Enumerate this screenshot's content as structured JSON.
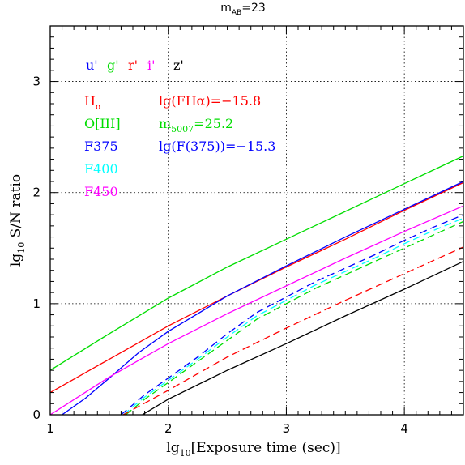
{
  "chart_data": {
    "type": "line",
    "title": "m",
    "title_sub": "AB",
    "title_suffix": "=23",
    "xlabel": "lg",
    "xlabel_sub": "10",
    "xlabel_suffix": "[Exposure time (sec)]",
    "ylabel": "lg",
    "ylabel_sub": "10",
    "ylabel_suffix": " S/N ratio",
    "xlim": [
      1,
      4.5
    ],
    "ylim": [
      0,
      3.5
    ],
    "xticks": [
      "1",
      "2",
      "3",
      "4"
    ],
    "yticks": [
      "0",
      "1",
      "2",
      "3"
    ],
    "grid": true,
    "filter_legend": [
      {
        "label": "u'",
        "color": "#0000ff"
      },
      {
        "label": "g'",
        "color": "#00dd00"
      },
      {
        "label": "r'",
        "color": "#ff0000"
      },
      {
        "label": "i'",
        "color": "#ff00ff"
      },
      {
        "label": "z'",
        "color": "#000000"
      }
    ],
    "band_legend": [
      {
        "label": "H",
        "sub": "α",
        "color": "#ff0000"
      },
      {
        "label": "O[III]",
        "color": "#00dd00"
      },
      {
        "label": "F375",
        "color": "#0000ff"
      },
      {
        "label": "F400",
        "color": "#00ffff"
      },
      {
        "label": "F450",
        "color": "#ff00ff"
      }
    ],
    "annotations": [
      {
        "text": "lg(FHα)=−15.8",
        "color": "#ff0000"
      },
      {
        "text": "m",
        "sub": "5007",
        "suffix": "=25.2",
        "color": "#00dd00"
      },
      {
        "text": "lg(F(375))=−15.3",
        "color": "#0000ff"
      }
    ],
    "series": [
      {
        "color": "#ff0000",
        "dash": false,
        "x": [
          1.0,
          1.5,
          2.0,
          2.5,
          3.0,
          3.5,
          4.0,
          4.5
        ],
        "y": [
          0.2,
          0.5,
          0.8,
          1.07,
          1.33,
          1.58,
          1.84,
          2.09
        ]
      },
      {
        "color": "#00dd00",
        "dash": false,
        "x": [
          1.0,
          1.5,
          2.0,
          2.5,
          3.0,
          3.5,
          4.0,
          4.5
        ],
        "y": [
          0.4,
          0.73,
          1.05,
          1.33,
          1.58,
          1.83,
          2.08,
          2.33
        ]
      },
      {
        "color": "#0000ff",
        "dash": false,
        "x": [
          1.1,
          1.3,
          1.5,
          1.75,
          2.0,
          2.5,
          3.0,
          3.5,
          4.0,
          4.5
        ],
        "y": [
          0.0,
          0.15,
          0.33,
          0.56,
          0.75,
          1.07,
          1.34,
          1.6,
          1.85,
          2.1
        ]
      },
      {
        "color": "#ff00ff",
        "dash": false,
        "x": [
          1.0,
          1.5,
          2.0,
          2.5,
          3.0,
          3.5,
          4.0,
          4.5
        ],
        "y": [
          0.0,
          0.34,
          0.64,
          0.91,
          1.16,
          1.41,
          1.65,
          1.88
        ]
      },
      {
        "color": "#000000",
        "dash": false,
        "x": [
          1.78,
          2.0,
          2.5,
          3.0,
          3.5,
          4.0,
          4.5
        ],
        "y": [
          0.0,
          0.14,
          0.4,
          0.64,
          0.89,
          1.13,
          1.38
        ]
      },
      {
        "color": "#0000ff",
        "dash": true,
        "x": [
          1.6,
          1.8,
          2.0,
          2.25,
          2.5,
          2.75,
          3.0,
          3.25,
          3.5,
          3.75,
          4.0,
          4.25,
          4.5
        ],
        "y": [
          0.0,
          0.18,
          0.33,
          0.52,
          0.73,
          0.92,
          1.06,
          1.2,
          1.32,
          1.44,
          1.57,
          1.69,
          1.8
        ]
      },
      {
        "color": "#00ffff",
        "dash": true,
        "x": [
          1.62,
          1.8,
          2.0,
          2.25,
          2.5,
          2.75,
          3.0,
          3.25,
          3.5,
          3.75,
          4.0,
          4.25,
          4.5
        ],
        "y": [
          0.0,
          0.16,
          0.31,
          0.5,
          0.7,
          0.89,
          1.03,
          1.17,
          1.29,
          1.41,
          1.54,
          1.66,
          1.77
        ]
      },
      {
        "color": "#00dd00",
        "dash": true,
        "x": [
          1.64,
          1.8,
          2.0,
          2.25,
          2.5,
          2.75,
          3.0,
          3.25,
          3.5,
          3.75,
          4.0,
          4.25,
          4.5
        ],
        "y": [
          0.0,
          0.14,
          0.29,
          0.48,
          0.67,
          0.86,
          1.0,
          1.14,
          1.26,
          1.38,
          1.5,
          1.62,
          1.74
        ]
      },
      {
        "color": "#ff0000",
        "dash": true,
        "x": [
          1.62,
          2.0,
          2.5,
          3.0,
          3.5,
          4.0,
          4.5
        ],
        "y": [
          0.0,
          0.22,
          0.52,
          0.78,
          1.03,
          1.27,
          1.51
        ]
      }
    ]
  }
}
